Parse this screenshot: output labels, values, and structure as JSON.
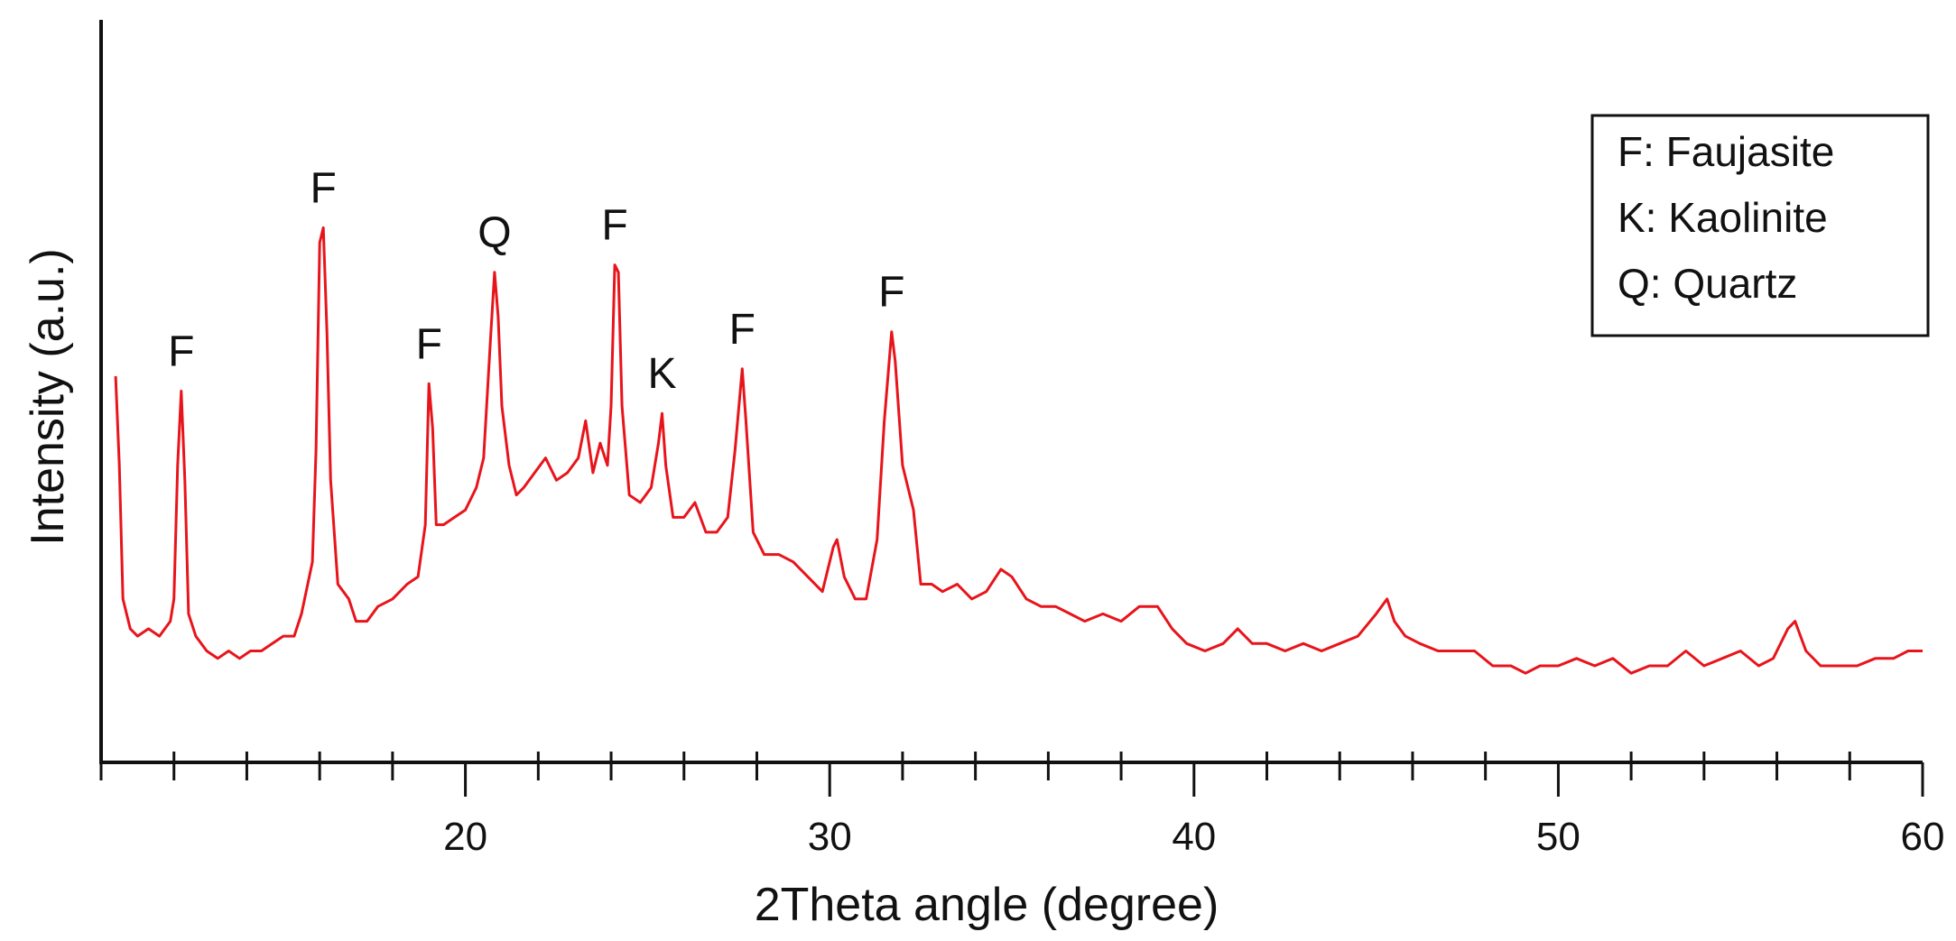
{
  "chart_data": {
    "type": "line",
    "title": "",
    "xlabel": "2Theta angle (degree)",
    "ylabel": "Intensity (a.u.)",
    "xlim": [
      10,
      60
    ],
    "ylim": [
      0,
      100
    ],
    "x_ticks": [
      20,
      30,
      40,
      50,
      60
    ],
    "y_ticks": [],
    "grid": false,
    "line_color": "#e8141b",
    "legend": {
      "placement": "top-right",
      "entries": [
        "F: Faujasite",
        "K: Kaolinite",
        "Q: Quartz"
      ]
    },
    "peak_annotations": [
      {
        "label": "F",
        "x": 12.2
      },
      {
        "label": "F",
        "x": 16.1
      },
      {
        "label": "F",
        "x": 19.0
      },
      {
        "label": "Q",
        "x": 20.8
      },
      {
        "label": "F",
        "x": 24.1
      },
      {
        "label": "K",
        "x": 25.4
      },
      {
        "label": "F",
        "x": 27.6
      },
      {
        "label": "F",
        "x": 31.7
      }
    ],
    "series": [
      {
        "values": [
          [
            10.4,
            52
          ],
          [
            10.5,
            40
          ],
          [
            10.6,
            22
          ],
          [
            10.8,
            18
          ],
          [
            11.0,
            17
          ],
          [
            11.3,
            18
          ],
          [
            11.6,
            17
          ],
          [
            11.9,
            19
          ],
          [
            12.0,
            22
          ],
          [
            12.1,
            40
          ],
          [
            12.2,
            50
          ],
          [
            12.3,
            38
          ],
          [
            12.4,
            20
          ],
          [
            12.6,
            17
          ],
          [
            12.9,
            15
          ],
          [
            13.2,
            14
          ],
          [
            13.5,
            15
          ],
          [
            13.8,
            14
          ],
          [
            14.1,
            15
          ],
          [
            14.4,
            15
          ],
          [
            14.7,
            16
          ],
          [
            15.0,
            17
          ],
          [
            15.3,
            17
          ],
          [
            15.5,
            20
          ],
          [
            15.8,
            27
          ],
          [
            15.9,
            42
          ],
          [
            16.0,
            70
          ],
          [
            16.1,
            72
          ],
          [
            16.2,
            58
          ],
          [
            16.3,
            38
          ],
          [
            16.5,
            24
          ],
          [
            16.8,
            22
          ],
          [
            17.0,
            19
          ],
          [
            17.3,
            19
          ],
          [
            17.6,
            21
          ],
          [
            18.0,
            22
          ],
          [
            18.4,
            24
          ],
          [
            18.7,
            25
          ],
          [
            18.9,
            32
          ],
          [
            19.0,
            51
          ],
          [
            19.1,
            45
          ],
          [
            19.2,
            32
          ],
          [
            19.4,
            32
          ],
          [
            19.7,
            33
          ],
          [
            20.0,
            34
          ],
          [
            20.3,
            37
          ],
          [
            20.5,
            41
          ],
          [
            20.7,
            58
          ],
          [
            20.8,
            66
          ],
          [
            20.9,
            60
          ],
          [
            21.0,
            48
          ],
          [
            21.2,
            40
          ],
          [
            21.4,
            36
          ],
          [
            21.6,
            37
          ],
          [
            21.9,
            39
          ],
          [
            22.2,
            41
          ],
          [
            22.5,
            38
          ],
          [
            22.8,
            39
          ],
          [
            23.1,
            41
          ],
          [
            23.3,
            46
          ],
          [
            23.5,
            39
          ],
          [
            23.7,
            43
          ],
          [
            23.9,
            40
          ],
          [
            24.0,
            48
          ],
          [
            24.1,
            67
          ],
          [
            24.2,
            66
          ],
          [
            24.3,
            48
          ],
          [
            24.5,
            36
          ],
          [
            24.8,
            35
          ],
          [
            25.1,
            37
          ],
          [
            25.3,
            43
          ],
          [
            25.4,
            47
          ],
          [
            25.5,
            40
          ],
          [
            25.7,
            33
          ],
          [
            26.0,
            33
          ],
          [
            26.3,
            35
          ],
          [
            26.6,
            31
          ],
          [
            26.9,
            31
          ],
          [
            27.2,
            33
          ],
          [
            27.4,
            42
          ],
          [
            27.6,
            53
          ],
          [
            27.7,
            46
          ],
          [
            27.9,
            31
          ],
          [
            28.2,
            28
          ],
          [
            28.6,
            28
          ],
          [
            29.0,
            27
          ],
          [
            29.4,
            25
          ],
          [
            29.8,
            23
          ],
          [
            30.1,
            29
          ],
          [
            30.2,
            30
          ],
          [
            30.4,
            25
          ],
          [
            30.7,
            22
          ],
          [
            31.0,
            22
          ],
          [
            31.3,
            30
          ],
          [
            31.5,
            46
          ],
          [
            31.7,
            58
          ],
          [
            31.8,
            54
          ],
          [
            32.0,
            40
          ],
          [
            32.3,
            34
          ],
          [
            32.5,
            24
          ],
          [
            32.8,
            24
          ],
          [
            33.1,
            23
          ],
          [
            33.5,
            24
          ],
          [
            33.9,
            22
          ],
          [
            34.3,
            23
          ],
          [
            34.7,
            26
          ],
          [
            35.0,
            25
          ],
          [
            35.4,
            22
          ],
          [
            35.8,
            21
          ],
          [
            36.2,
            21
          ],
          [
            36.6,
            20
          ],
          [
            37.0,
            19
          ],
          [
            37.5,
            20
          ],
          [
            38.0,
            19
          ],
          [
            38.5,
            21
          ],
          [
            39.0,
            21
          ],
          [
            39.4,
            18
          ],
          [
            39.8,
            16
          ],
          [
            40.3,
            15
          ],
          [
            40.8,
            16
          ],
          [
            41.2,
            18
          ],
          [
            41.6,
            16
          ],
          [
            42.0,
            16
          ],
          [
            42.5,
            15
          ],
          [
            43.0,
            16
          ],
          [
            43.5,
            15
          ],
          [
            44.0,
            16
          ],
          [
            44.5,
            17
          ],
          [
            45.0,
            20
          ],
          [
            45.3,
            22
          ],
          [
            45.5,
            19
          ],
          [
            45.8,
            17
          ],
          [
            46.2,
            16
          ],
          [
            46.7,
            15
          ],
          [
            47.2,
            15
          ],
          [
            47.7,
            15
          ],
          [
            48.2,
            13
          ],
          [
            48.7,
            13
          ],
          [
            49.1,
            12
          ],
          [
            49.5,
            13
          ],
          [
            50.0,
            13
          ],
          [
            50.5,
            14
          ],
          [
            51.0,
            13
          ],
          [
            51.5,
            14
          ],
          [
            52.0,
            12
          ],
          [
            52.5,
            13
          ],
          [
            53.0,
            13
          ],
          [
            53.5,
            15
          ],
          [
            54.0,
            13
          ],
          [
            54.5,
            14
          ],
          [
            55.0,
            15
          ],
          [
            55.5,
            13
          ],
          [
            55.9,
            14
          ],
          [
            56.3,
            18
          ],
          [
            56.5,
            19
          ],
          [
            56.8,
            15
          ],
          [
            57.2,
            13
          ],
          [
            57.7,
            13
          ],
          [
            58.2,
            13
          ],
          [
            58.7,
            14
          ],
          [
            59.2,
            14
          ],
          [
            59.6,
            15
          ],
          [
            60.0,
            15
          ]
        ]
      }
    ]
  }
}
